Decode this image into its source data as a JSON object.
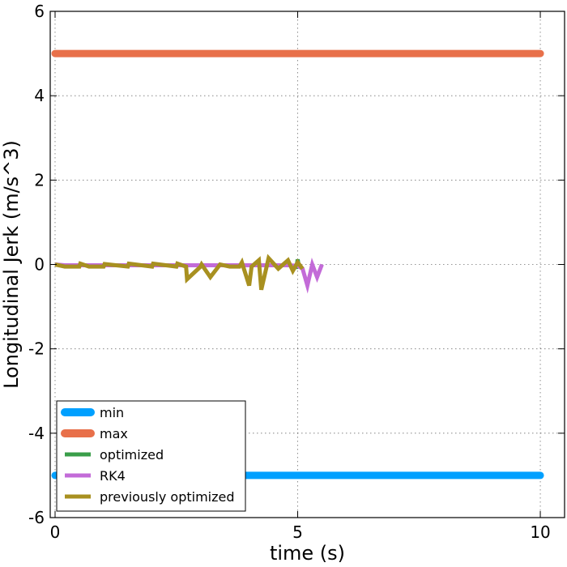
{
  "chart_data": {
    "type": "line",
    "title": "",
    "xlabel": "time (s)",
    "ylabel": "Longitudinal Jerk (m/s^3)",
    "xlim": [
      -0.1,
      10.5
    ],
    "ylim": [
      -6,
      6
    ],
    "grid": true,
    "legend_position": "lower-left",
    "x_ticks": [
      0,
      5,
      10
    ],
    "y_ticks": [
      -6,
      -4,
      -2,
      0,
      2,
      4,
      6
    ],
    "x_tick_labels": [
      "0",
      "5",
      "10"
    ],
    "y_tick_labels": [
      "-6",
      "-4",
      "-2",
      "0",
      "2",
      "4",
      "6"
    ],
    "series": [
      {
        "name": "min",
        "color": "#00a0ff",
        "line_width": "thick",
        "x": [
          0,
          10
        ],
        "y": [
          -5,
          -5
        ]
      },
      {
        "name": "max",
        "color": "#e8704a",
        "line_width": "thick",
        "x": [
          0,
          10
        ],
        "y": [
          5,
          5
        ]
      },
      {
        "name": "optimized",
        "color": "#3a9e4a",
        "line_width": "medium",
        "x": [
          4.95,
          4.97,
          5.0,
          5.02
        ],
        "y": [
          0.0,
          -0.1,
          0.12,
          -0.02
        ]
      },
      {
        "name": "RK4",
        "color": "#c36bd8",
        "line_width": "medium",
        "x": [
          0,
          0.2,
          0.5,
          0.8,
          1.2,
          1.6,
          2.0,
          2.4,
          2.8,
          3.2,
          3.6,
          4.0,
          4.4,
          4.8,
          5.0,
          5.1,
          5.2,
          5.3,
          5.4,
          5.5
        ],
        "y": [
          0,
          -0.02,
          -0.02,
          -0.02,
          -0.02,
          -0.02,
          -0.02,
          -0.02,
          -0.02,
          -0.02,
          -0.02,
          -0.02,
          -0.02,
          -0.02,
          -0.03,
          -0.1,
          -0.5,
          0.0,
          -0.3,
          0.0
        ]
      },
      {
        "name": "previously optimized",
        "color": "#a89020",
        "line_width": "medium",
        "x": [
          0,
          0.2,
          0.5,
          0.52,
          0.7,
          1.0,
          1.02,
          1.5,
          1.52,
          2.0,
          2.02,
          2.5,
          2.52,
          2.7,
          2.72,
          3.0,
          3.02,
          3.2,
          3.4,
          3.6,
          3.8,
          3.85,
          4.0,
          4.05,
          4.2,
          4.25,
          4.4,
          4.6,
          4.8,
          4.9,
          5.0,
          5.1
        ],
        "y": [
          0,
          -0.05,
          -0.05,
          0.02,
          -0.05,
          -0.05,
          0.01,
          -0.05,
          0.02,
          -0.05,
          0.02,
          -0.05,
          0.02,
          -0.05,
          -0.35,
          -0.05,
          0.0,
          -0.3,
          0.0,
          -0.05,
          -0.05,
          0.05,
          -0.5,
          -0.05,
          0.1,
          -0.6,
          0.15,
          -0.1,
          0.1,
          -0.15,
          0.05,
          -0.1
        ]
      }
    ]
  }
}
